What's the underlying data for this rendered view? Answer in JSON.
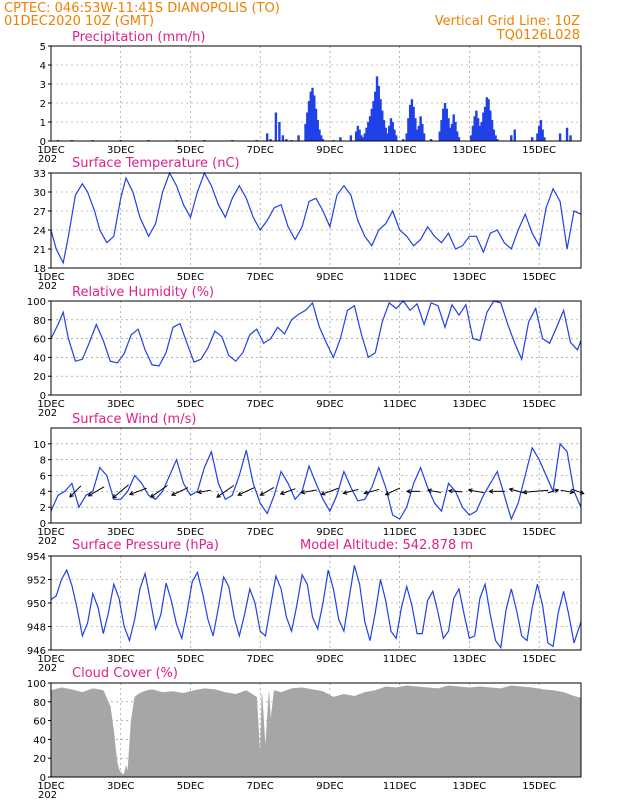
{
  "header": {
    "line1_left": "CPTEC:   046:53W-11:41S   DIANOPOLIS (TO)",
    "line1_right": "",
    "line2_left": "01DEC2020 10Z (GMT)",
    "line2_right": "Vertical Grid Line: 10Z",
    "code": "TQ0126L028"
  },
  "colors": {
    "header": "#f08000",
    "title": "#e0208c",
    "series": "#2040e8",
    "cloud": "#a6a6a6"
  },
  "x_axis": {
    "labels": [
      "1DEC",
      "3DEC",
      "5DEC",
      "7DEC",
      "9DEC",
      "11DEC",
      "13DEC",
      "15DEC"
    ],
    "label_days": [
      0,
      2,
      4,
      6,
      8,
      10,
      12,
      14
    ],
    "overflow_label": "202",
    "days_span": 15.2
  },
  "chart_data": [
    {
      "id": "precip",
      "type": "bar",
      "title": "Precipitation (mm/h)",
      "ylim": [
        0,
        5
      ],
      "yticks": [
        0,
        1,
        2,
        3,
        4,
        5
      ],
      "x_unit": "days since 01DEC2020 10Z",
      "x": [
        0.2,
        0.6,
        1.2,
        2.0,
        2.8,
        3.6,
        4.4,
        5.2,
        5.9,
        6.2,
        6.3,
        6.45,
        6.55,
        6.65,
        6.75,
        6.9,
        7.1,
        7.3,
        7.35,
        7.4,
        7.45,
        7.5,
        7.55,
        7.6,
        7.65,
        7.7,
        7.75,
        7.8,
        8.1,
        8.3,
        8.6,
        8.75,
        8.8,
        8.85,
        8.9,
        8.95,
        9.0,
        9.05,
        9.1,
        9.15,
        9.2,
        9.25,
        9.3,
        9.35,
        9.4,
        9.45,
        9.5,
        9.55,
        9.6,
        9.65,
        9.7,
        9.75,
        9.8,
        9.85,
        9.9,
        10.1,
        10.2,
        10.25,
        10.3,
        10.35,
        10.4,
        10.45,
        10.5,
        10.55,
        10.6,
        10.65,
        10.7,
        10.9,
        11.15,
        11.2,
        11.25,
        11.3,
        11.35,
        11.4,
        11.45,
        11.5,
        11.55,
        11.6,
        11.65,
        11.7,
        12.05,
        12.1,
        12.15,
        12.2,
        12.25,
        12.3,
        12.35,
        12.4,
        12.45,
        12.5,
        12.55,
        12.6,
        12.65,
        12.7,
        12.75,
        12.8,
        13.2,
        13.3,
        13.8,
        13.95,
        14.0,
        14.05,
        14.1,
        14.15,
        14.6,
        14.8,
        14.9
      ],
      "values": [
        0.05,
        0.05,
        0.05,
        0.05,
        0.05,
        0.05,
        0.05,
        0.05,
        0.05,
        0.4,
        0.1,
        1.5,
        1.0,
        0.3,
        0.1,
        0.05,
        0.3,
        0.9,
        1.5,
        2.1,
        2.6,
        2.8,
        2.4,
        1.7,
        1.1,
        0.6,
        0.3,
        0.1,
        0.05,
        0.2,
        0.3,
        0.5,
        0.8,
        0.6,
        0.3,
        0.2,
        0.4,
        0.7,
        1.0,
        1.3,
        1.7,
        2.1,
        2.6,
        3.4,
        2.9,
        2.2,
        1.6,
        1.1,
        0.7,
        0.4,
        0.8,
        1.2,
        1.0,
        0.6,
        0.3,
        0.1,
        0.4,
        1.2,
        1.9,
        2.2,
        1.8,
        1.2,
        0.6,
        0.8,
        1.3,
        0.9,
        0.4,
        0.1,
        0.5,
        1.1,
        1.7,
        2.0,
        1.7,
        1.2,
        0.7,
        0.9,
        1.4,
        1.0,
        0.5,
        0.2,
        0.3,
        0.8,
        1.3,
        1.6,
        1.2,
        0.8,
        1.0,
        1.5,
        1.8,
        2.3,
        2.2,
        1.6,
        1.1,
        0.6,
        0.3,
        0.1,
        0.3,
        0.6,
        0.2,
        0.4,
        0.8,
        1.1,
        0.6,
        0.2,
        0.4,
        0.7,
        0.3
      ]
    },
    {
      "id": "temp",
      "type": "line",
      "title": "Surface Temperature (nC)",
      "ylim": [
        18,
        33
      ],
      "yticks": [
        18,
        21,
        24,
        27,
        30,
        33
      ],
      "x_unit": "days since 01DEC2020 10Z",
      "x": [
        0,
        0.15,
        0.35,
        0.5,
        0.7,
        0.9,
        1.05,
        1.25,
        1.4,
        1.6,
        1.8,
        2.0,
        2.15,
        2.35,
        2.55,
        2.8,
        3.0,
        3.2,
        3.4,
        3.6,
        3.8,
        4.0,
        4.2,
        4.4,
        4.6,
        4.8,
        5.0,
        5.2,
        5.4,
        5.6,
        5.8,
        6.0,
        6.2,
        6.4,
        6.6,
        6.8,
        7.0,
        7.2,
        7.4,
        7.6,
        7.8,
        8.0,
        8.2,
        8.4,
        8.6,
        8.8,
        9.0,
        9.2,
        9.4,
        9.6,
        9.8,
        10.0,
        10.2,
        10.4,
        10.6,
        10.8,
        11.0,
        11.2,
        11.4,
        11.6,
        11.8,
        12.0,
        12.2,
        12.4,
        12.6,
        12.8,
        13.0,
        13.2,
        13.4,
        13.6,
        13.8,
        14.0,
        14.2,
        14.4,
        14.6,
        14.8,
        15.0,
        15.2
      ],
      "values": [
        24,
        21,
        18.8,
        23,
        29.5,
        31.3,
        30,
        27,
        24,
        22,
        23,
        29,
        32.2,
        30,
        26,
        23,
        25,
        30,
        33,
        31,
        28,
        26,
        30,
        33,
        31,
        28,
        26,
        29,
        31,
        29,
        26,
        24,
        25.5,
        27.5,
        28,
        24.5,
        22.5,
        24.5,
        28.5,
        29,
        27,
        24.5,
        29.5,
        31,
        29.5,
        25.5,
        23,
        21.5,
        24,
        25,
        27,
        24,
        23,
        21.5,
        22.5,
        24.5,
        23,
        22,
        23.5,
        21,
        21.5,
        23,
        23,
        20.5,
        23.5,
        24,
        22,
        21,
        24,
        26.5,
        23.5,
        21.5,
        27.5,
        30.5,
        28.5,
        21,
        27,
        26.5
      ]
    },
    {
      "id": "rh",
      "type": "line",
      "title": "Relative Humidity (%)",
      "ylim": [
        0,
        100
      ],
      "yticks": [
        0,
        20,
        40,
        60,
        80,
        100
      ],
      "x_unit": "days since 01DEC2020 10Z",
      "x": [
        0,
        0.2,
        0.35,
        0.5,
        0.7,
        0.9,
        1.1,
        1.3,
        1.5,
        1.7,
        1.9,
        2.1,
        2.3,
        2.5,
        2.7,
        2.9,
        3.1,
        3.3,
        3.5,
        3.7,
        3.9,
        4.1,
        4.3,
        4.5,
        4.7,
        4.9,
        5.1,
        5.3,
        5.5,
        5.7,
        5.9,
        6.1,
        6.3,
        6.5,
        6.7,
        6.9,
        7.1,
        7.3,
        7.5,
        7.7,
        7.9,
        8.1,
        8.3,
        8.5,
        8.7,
        8.9,
        9.1,
        9.3,
        9.5,
        9.7,
        9.9,
        10.1,
        10.3,
        10.5,
        10.7,
        10.9,
        11.1,
        11.3,
        11.5,
        11.7,
        11.9,
        12.1,
        12.3,
        12.5,
        12.7,
        12.9,
        13.1,
        13.3,
        13.5,
        13.7,
        13.9,
        14.1,
        14.3,
        14.5,
        14.7,
        14.9,
        15.1,
        15.2
      ],
      "values": [
        60,
        75,
        88,
        60,
        36,
        38,
        56,
        75,
        58,
        36,
        34,
        44,
        64,
        70,
        48,
        32,
        31,
        45,
        72,
        76,
        55,
        35,
        38,
        50,
        68,
        62,
        42,
        36,
        45,
        64,
        70,
        55,
        60,
        72,
        65,
        80,
        86,
        90,
        98,
        72,
        55,
        40,
        60,
        90,
        95,
        65,
        40,
        45,
        78,
        98,
        92,
        100,
        90,
        97,
        75,
        98,
        95,
        72,
        96,
        85,
        96,
        60,
        58,
        88,
        100,
        98,
        75,
        55,
        38,
        78,
        92,
        60,
        55,
        72,
        90,
        56,
        48,
        58
      ]
    },
    {
      "id": "wind",
      "type": "line",
      "title": "Surface Wind (m/s)",
      "ylim": [
        0,
        12
      ],
      "yticks": [
        0,
        2,
        4,
        6,
        8,
        10
      ],
      "x_unit": "days since 01DEC2020 10Z",
      "x": [
        0,
        0.2,
        0.4,
        0.6,
        0.8,
        1.0,
        1.2,
        1.4,
        1.6,
        1.8,
        2.0,
        2.2,
        2.4,
        2.6,
        2.8,
        3.0,
        3.2,
        3.4,
        3.6,
        3.8,
        4.0,
        4.2,
        4.4,
        4.6,
        4.8,
        5.0,
        5.2,
        5.4,
        5.6,
        5.8,
        6.0,
        6.2,
        6.4,
        6.6,
        6.8,
        7.0,
        7.2,
        7.4,
        7.6,
        7.8,
        8.0,
        8.2,
        8.4,
        8.6,
        8.8,
        9.0,
        9.2,
        9.4,
        9.6,
        9.8,
        10.0,
        10.2,
        10.4,
        10.6,
        10.8,
        11.0,
        11.2,
        11.4,
        11.6,
        11.8,
        12.0,
        12.2,
        12.4,
        12.6,
        12.8,
        13.0,
        13.2,
        13.4,
        13.6,
        13.8,
        14.0,
        14.2,
        14.4,
        14.6,
        14.8,
        15.0,
        15.2
      ],
      "values": [
        1.5,
        3.5,
        4,
        5,
        2,
        3.5,
        4,
        7,
        6,
        3,
        3,
        4,
        6,
        5,
        3.5,
        3,
        4,
        6,
        8,
        5,
        3.5,
        4,
        7,
        9,
        5,
        3,
        3.5,
        6,
        9.2,
        5,
        2.5,
        1.2,
        3.5,
        6.5,
        5,
        3,
        4,
        7.2,
        5,
        3,
        1.5,
        3.5,
        6.5,
        4.5,
        2.8,
        3,
        4.5,
        7,
        4.5,
        1,
        0.5,
        2,
        5,
        7,
        4.5,
        2.5,
        1.5,
        5,
        4,
        2,
        1,
        1.5,
        3.5,
        5,
        6.5,
        3.5,
        0.5,
        2.5,
        6,
        9.5,
        8,
        6,
        4,
        10,
        9,
        4,
        2
      ]
    },
    {
      "id": "pressure",
      "type": "line",
      "title": "Surface Pressure (hPa)",
      "annotation": "Model Altitude: 542.878  m",
      "ylim": [
        946,
        954
      ],
      "yticks": [
        946,
        948,
        950,
        952,
        954
      ],
      "x_unit": "days since 01DEC2020 10Z",
      "x": [
        0,
        0.15,
        0.3,
        0.45,
        0.6,
        0.75,
        0.9,
        1.05,
        1.2,
        1.35,
        1.5,
        1.65,
        1.8,
        1.95,
        2.1,
        2.25,
        2.4,
        2.55,
        2.7,
        2.85,
        3.0,
        3.15,
        3.3,
        3.45,
        3.6,
        3.75,
        3.9,
        4.05,
        4.2,
        4.35,
        4.5,
        4.65,
        4.8,
        4.95,
        5.1,
        5.25,
        5.4,
        5.55,
        5.7,
        5.85,
        6.0,
        6.15,
        6.3,
        6.45,
        6.6,
        6.75,
        6.9,
        7.05,
        7.2,
        7.35,
        7.5,
        7.65,
        7.8,
        7.95,
        8.1,
        8.25,
        8.4,
        8.55,
        8.7,
        8.85,
        9.0,
        9.15,
        9.3,
        9.45,
        9.6,
        9.75,
        9.9,
        10.05,
        10.2,
        10.35,
        10.5,
        10.65,
        10.8,
        10.95,
        11.1,
        11.25,
        11.4,
        11.55,
        11.7,
        11.85,
        12.0,
        12.15,
        12.3,
        12.45,
        12.6,
        12.75,
        12.9,
        13.05,
        13.2,
        13.35,
        13.5,
        13.65,
        13.8,
        13.95,
        14.1,
        14.25,
        14.4,
        14.55,
        14.7,
        14.85,
        15.0,
        15.2
      ],
      "values": [
        950.3,
        950.6,
        952,
        952.8,
        951.5,
        949.5,
        947.2,
        948.3,
        950.8,
        949.6,
        947.4,
        949.2,
        951.6,
        950.4,
        948,
        946.8,
        948.6,
        951.2,
        952.5,
        950.2,
        947.8,
        949,
        951.7,
        950.2,
        948.2,
        947,
        949.2,
        951.8,
        952.6,
        950.8,
        948.6,
        947.2,
        949.6,
        952.2,
        951.4,
        948.8,
        947.2,
        949,
        951.2,
        950,
        947.6,
        947.2,
        949.8,
        952.3,
        951.2,
        948.8,
        947.6,
        949.8,
        952.4,
        951.6,
        948.8,
        947.8,
        950,
        952.8,
        951.2,
        948.6,
        947.6,
        950.4,
        953.2,
        951.6,
        948.4,
        946.8,
        949.2,
        952,
        950.2,
        947.6,
        947,
        949.6,
        951.4,
        949.8,
        947.4,
        947.4,
        950.2,
        951,
        949.2,
        947,
        947.6,
        950.4,
        951.2,
        949,
        947,
        947.2,
        950.4,
        951.6,
        949,
        946.8,
        946.2,
        949.4,
        951.2,
        949.4,
        947.2,
        946.8,
        949.6,
        951.6,
        949.8,
        946.6,
        946.3,
        949.2,
        951,
        949,
        946.6,
        948.4
      ]
    },
    {
      "id": "cloud",
      "type": "area",
      "title": "Cloud Cover (%)",
      "ylim": [
        0,
        100
      ],
      "yticks": [
        0,
        20,
        40,
        60,
        80,
        100
      ],
      "x_unit": "days since 01DEC2020 10Z",
      "x": [
        0,
        0.3,
        0.6,
        0.9,
        1.2,
        1.5,
        1.7,
        1.8,
        1.85,
        1.9,
        1.95,
        2.0,
        2.05,
        2.1,
        2.15,
        2.2,
        2.3,
        2.4,
        2.5,
        2.6,
        2.75,
        2.9,
        3.2,
        3.5,
        3.8,
        4.1,
        4.4,
        4.7,
        5.0,
        5.3,
        5.6,
        5.9,
        6.0,
        6.05,
        6.15,
        6.25,
        6.3,
        6.4,
        6.6,
        6.9,
        7.2,
        7.5,
        7.8,
        8.1,
        8.4,
        8.7,
        9.0,
        9.3,
        9.6,
        9.9,
        10.2,
        10.5,
        10.8,
        11.1,
        11.4,
        11.7,
        12.0,
        12.3,
        12.6,
        12.9,
        13.2,
        13.5,
        13.8,
        14.1,
        14.4,
        14.7,
        15.0,
        15.2
      ],
      "values": [
        92,
        95,
        93,
        90,
        94,
        92,
        75,
        48,
        30,
        15,
        8,
        5,
        3,
        3,
        12,
        5,
        60,
        85,
        88,
        90,
        92,
        93,
        90,
        91,
        89,
        92,
        94,
        93,
        90,
        88,
        92,
        85,
        20,
        88,
        30,
        90,
        60,
        92,
        90,
        94,
        95,
        93,
        91,
        85,
        88,
        86,
        90,
        92,
        96,
        95,
        97,
        96,
        95,
        94,
        97,
        96,
        95,
        96,
        95,
        94,
        97,
        96,
        95,
        93,
        92,
        90,
        86,
        84
      ]
    }
  ],
  "wind_vectors": {
    "comment": "direction toward which the arrow points, degrees clockwise from north, with speed in m/s",
    "x": [
      0.7,
      1.3,
      2.0,
      2.5,
      3.1,
      3.7,
      4.4,
      5.0,
      5.6,
      6.2,
      6.8,
      7.4,
      8.0,
      8.6,
      9.2,
      9.8,
      10.4,
      11.0,
      11.6,
      12.2,
      12.8,
      13.4,
      13.9,
      14.4,
      14.8,
      15.1
    ],
    "dir": [
      225,
      240,
      230,
      250,
      235,
      245,
      260,
      235,
      245,
      240,
      250,
      260,
      250,
      255,
      255,
      245,
      270,
      280,
      275,
      280,
      270,
      285,
      265,
      75,
      100,
      110
    ],
    "speed": [
      4,
      5,
      6,
      5,
      6,
      5,
      3,
      6,
      5,
      4,
      4,
      4,
      5,
      4,
      4,
      4,
      3,
      3,
      3,
      4,
      4,
      5,
      8,
      2,
      3,
      3
    ]
  }
}
